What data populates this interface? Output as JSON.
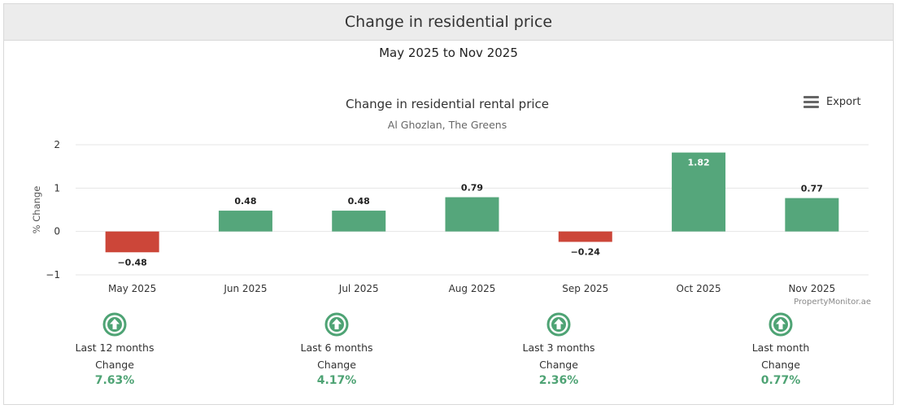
{
  "panel": {
    "title": "Change in residential price",
    "period": "May 2025 to Nov 2025"
  },
  "export": {
    "label": "Export",
    "icon": "menu-icon"
  },
  "credit": "PropertyMonitor.ae",
  "colors": {
    "positive": "#55a67b",
    "negative": "#cc4639",
    "stat_value": "#4ea374"
  },
  "chart_data": {
    "type": "bar",
    "title": "Change in residential rental price",
    "subtitle": "Al Ghozlan, The Greens",
    "xlabel": "",
    "ylabel": "% Change",
    "ylim": [
      -1,
      2
    ],
    "yticks": [
      "2",
      "1",
      "0",
      "−1"
    ],
    "grid": true,
    "categories": [
      "May 2025",
      "Jun 2025",
      "Jul 2025",
      "Aug 2025",
      "Sep 2025",
      "Oct 2025",
      "Nov 2025"
    ],
    "values": [
      -0.48,
      0.48,
      0.48,
      0.79,
      -0.24,
      1.82,
      0.77
    ],
    "data_labels": [
      "−0.48",
      "0.48",
      "0.48",
      "0.79",
      "−0.24",
      "1.82",
      "0.77"
    ]
  },
  "stats": [
    {
      "period": "Last 12 months",
      "label": "Change",
      "value": "7.63%",
      "icon": "arrow-up-circle-icon"
    },
    {
      "period": "Last 6 months",
      "label": "Change",
      "value": "4.17%",
      "icon": "arrow-up-circle-icon"
    },
    {
      "period": "Last 3 months",
      "label": "Change",
      "value": "2.36%",
      "icon": "arrow-up-circle-icon"
    },
    {
      "period": "Last month",
      "label": "Change",
      "value": "0.77%",
      "icon": "arrow-up-circle-icon"
    }
  ]
}
